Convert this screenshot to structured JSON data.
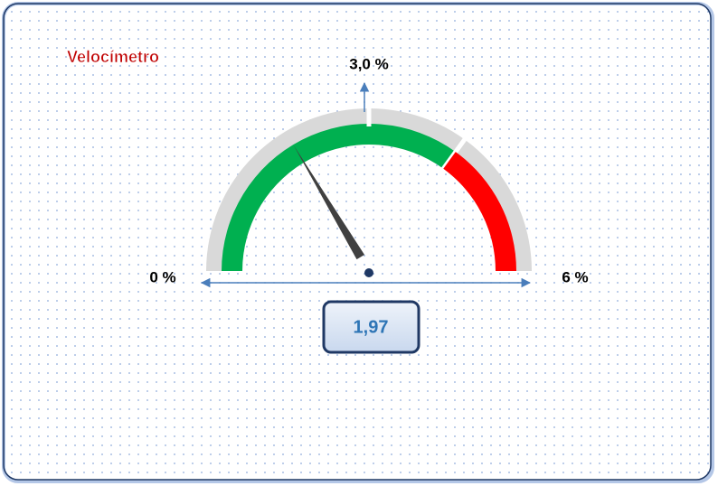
{
  "chart_data": {
    "type": "gauge",
    "title": "Velocímetro",
    "ylim": [
      0,
      6
    ],
    "yticks": [
      {
        "value": 0,
        "label": "0 %"
      },
      {
        "value": 3,
        "label": "3,0 %"
      },
      {
        "value": 6,
        "label": "6 %"
      }
    ],
    "bands": [
      {
        "from": 0,
        "to": 4.2,
        "color": "#00b050"
      },
      {
        "from": 4.2,
        "to": 6,
        "color": "#ff0000"
      }
    ],
    "values": [
      1.97
    ],
    "value_labels": [
      "1,97"
    ]
  }
}
